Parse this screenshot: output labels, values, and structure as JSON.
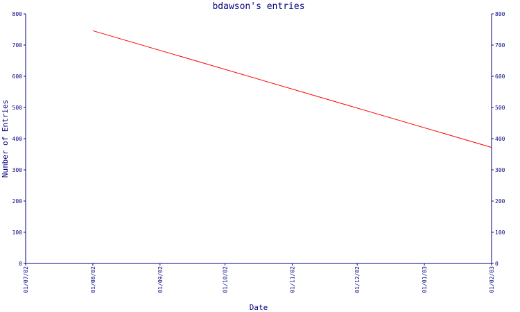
{
  "chart_data": {
    "type": "line",
    "title": "bdawson's entries",
    "xlabel": "Date",
    "ylabel": "Number of Entries",
    "x_ticks": [
      "01/07/02",
      "01/08/02",
      "01/09/02",
      "01/10/02",
      "01/11/02",
      "01/12/02",
      "01/01/03",
      "01/02/03"
    ],
    "y_ticks": [
      "0",
      "100",
      "200",
      "300",
      "400",
      "500",
      "600",
      "700",
      "800"
    ],
    "y_ticks_right": [
      "0",
      "100",
      "200",
      "300",
      "400",
      "500",
      "600",
      "700",
      "800"
    ],
    "ylim": [
      0,
      800
    ],
    "xlim": [
      "01/07/02",
      "01/02/03"
    ],
    "grid": false,
    "series": [
      {
        "color": "#ff0000",
        "x": [
          "01/08/02",
          "01/02/03"
        ],
        "y": [
          746,
          372
        ]
      }
    ],
    "colors": {
      "axis": "#000080",
      "text": "#000080",
      "line": "#ff0000"
    }
  }
}
